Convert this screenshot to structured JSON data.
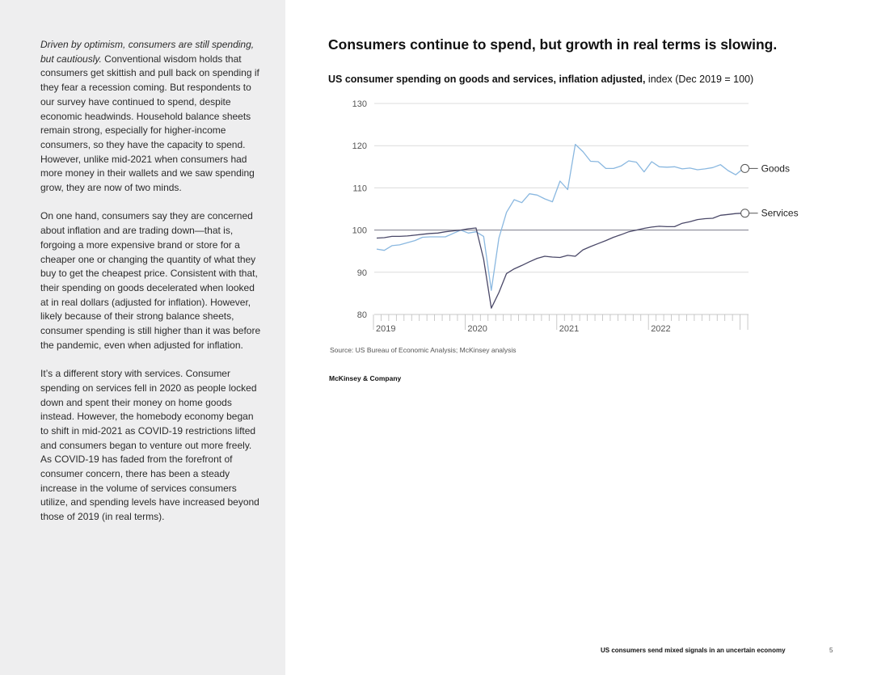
{
  "sidebar": {
    "p1_lead": "Driven by optimism, consumers are still spending, but cautiously.",
    "p1_body": " Conventional wisdom holds that consumers get skittish and pull back on spending if they fear a recession coming. But respondents to our survey have continued to spend, despite economic headwinds. Household balance sheets remain strong, especially for higher-income consumers, so they have the capacity to spend. However, unlike mid-2021 when consumers had more money in their wallets and we saw spending grow, they are now of two minds.",
    "p2": "On one hand, consumers say they are concerned about inflation and are trading down—that is, forgoing a more expensive brand or store for a cheaper one or changing the quantity of what they buy to get the cheapest price. Consistent with that, their spending on goods decelerated when looked at in real dollars (adjusted for inflation). However, likely because of their strong balance sheets, consumer spending is still higher than it was before the pandemic, even when adjusted for inflation.",
    "p3": "It’s a different story with services. Consumer spending on services fell in 2020 as people locked down and spent their money on home goods instead. However, the homebody economy began to shift in mid-2021 as COVID-19 restrictions lifted and consumers began to venture out more freely. As COVID-19 has faded from the forefront of consumer concern, there has been a steady increase in the volume of services consumers utilize, and spending levels have increased beyond those of 2019 (in real terms)."
  },
  "headline": "Consumers continue to spend, but growth in real terms is slowing.",
  "chart_data": {
    "type": "line",
    "title_bold": "US consumer spending on goods and services, inflation adjusted,",
    "title_rest": " index (Dec 2019 = 100)",
    "x_start": "2019-01",
    "x_labels": [
      "2019",
      "2020",
      "2021",
      "2022"
    ],
    "ylim": [
      80,
      130
    ],
    "y_ticks": [
      80,
      90,
      100,
      110,
      120,
      130
    ],
    "reference_line": 100,
    "grid": true,
    "series": [
      {
        "name": "Goods",
        "color": "#8ab8e0",
        "values": [
          95.5,
          95.2,
          96.3,
          96.5,
          97,
          97.5,
          98.3,
          98.4,
          98.4,
          98.4,
          99.2,
          100,
          99.3,
          99.6,
          98.5,
          85.7,
          98.1,
          104.2,
          107.2,
          106.5,
          108.6,
          108.3,
          107.4,
          106.7,
          111.6,
          109.6,
          120.3,
          118.6,
          116.3,
          116.2,
          114.6,
          114.6,
          115.2,
          116.4,
          116.1,
          113.8,
          116.2,
          115,
          114.9,
          115,
          114.5,
          114.7,
          114.3,
          114.5,
          114.8,
          115.5,
          114.1,
          113.1,
          114.6
        ]
      },
      {
        "name": "Services",
        "color": "#4a4868",
        "values": [
          98.1,
          98.2,
          98.5,
          98.5,
          98.6,
          98.8,
          99,
          99.2,
          99.3,
          99.6,
          99.8,
          100,
          100.3,
          100.5,
          93.1,
          81.5,
          85.2,
          89.7,
          90.8,
          91.6,
          92.5,
          93.3,
          93.8,
          93.6,
          93.5,
          94,
          93.8,
          95.3,
          96.1,
          96.8,
          97.5,
          98.3,
          98.9,
          99.6,
          100,
          100.4,
          100.7,
          100.9,
          100.8,
          100.8,
          101.6,
          102,
          102.5,
          102.7,
          102.8,
          103.5,
          103.7,
          103.9,
          104
        ]
      }
    ]
  },
  "source": "Source: US Bureau of Economic Analysis; McKinsey analysis",
  "brand": "McKinsey & Company",
  "footer": {
    "title": "US consumers send mixed signals in an uncertain economy",
    "page": "5"
  }
}
